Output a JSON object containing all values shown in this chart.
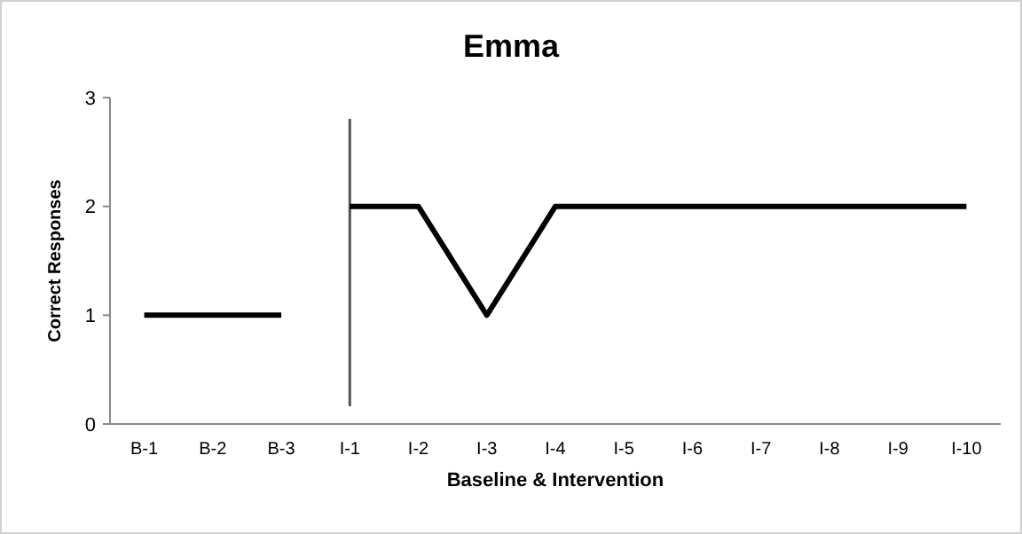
{
  "chart_data": {
    "type": "line",
    "title": "Emma",
    "xlabel": "Baseline & Intervention",
    "ylabel": "Correct Responses",
    "categories": [
      "B-1",
      "B-2",
      "B-3",
      "I-1",
      "I-2",
      "I-3",
      "I-4",
      "I-5",
      "I-6",
      "I-7",
      "I-8",
      "I-9",
      "I-10"
    ],
    "series": [
      {
        "color": "#000000",
        "values": [
          1,
          1,
          1,
          null,
          null,
          null,
          null,
          null,
          null,
          null,
          null,
          null,
          null
        ]
      },
      {
        "color": "#000000",
        "values": [
          null,
          null,
          null,
          2,
          2,
          1,
          2,
          2,
          2,
          2,
          2,
          2,
          2
        ]
      }
    ],
    "ylim": [
      0,
      3
    ],
    "yticks": [
      0,
      1,
      2,
      3
    ],
    "ref_lines": [
      {
        "axis": "x",
        "value": "I-1",
        "color": "#555555"
      }
    ],
    "grid": false,
    "marker": "none",
    "line_style": "solid"
  }
}
